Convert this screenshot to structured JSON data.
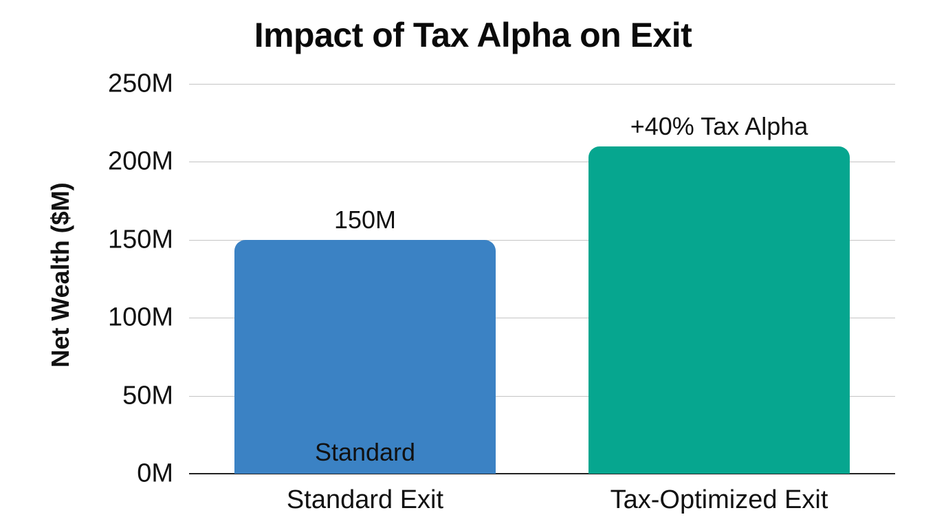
{
  "chart_data": {
    "type": "bar",
    "title": "Impact of Tax Alpha on Exit",
    "xlabel": "",
    "ylabel": "Net Wealth ($M)",
    "ylim": [
      0,
      250
    ],
    "yticks": [
      "0M",
      "50M",
      "100M",
      "150M",
      "200M",
      "250M"
    ],
    "ytick_values": [
      0,
      50,
      100,
      150,
      200,
      250
    ],
    "grid": true,
    "legend": null,
    "categories": [
      "Standard Exit",
      "Tax-Optimized Exit"
    ],
    "values": [
      150,
      210
    ],
    "colors": [
      "#3b82c4",
      "#06a68f"
    ],
    "data_labels": [
      "150M",
      "+40% Tax Alpha"
    ],
    "annotations": [
      {
        "text": "Standard",
        "position": "inside bottom of Standard Exit bar"
      }
    ]
  }
}
